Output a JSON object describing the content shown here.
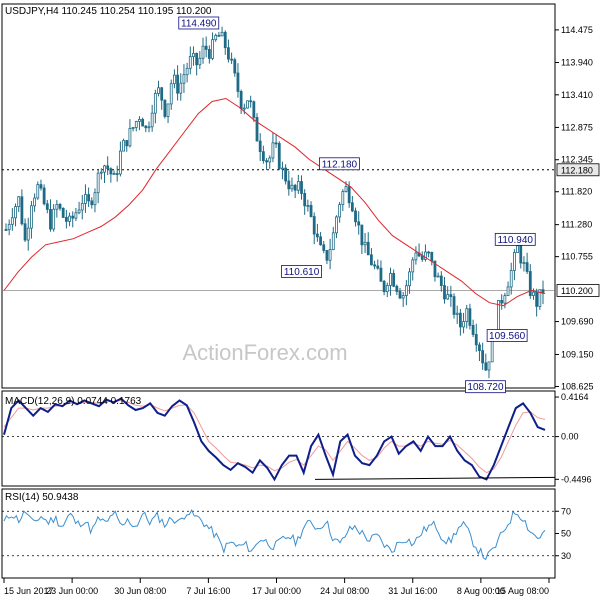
{
  "symbol_header": "USDJPY,H4  110.245 110.254 110.195 110.200",
  "watermark": "ActionForex.com",
  "colors": {
    "candle": "#1f6b86",
    "ma": "#e0262b",
    "macd_line": "#0f1f8a",
    "macd_signal": "#f29a9a",
    "rsi": "#3a8fd0",
    "price_box_fill": "#ffffff",
    "price_box_border": "#000000",
    "annotation_border": "#101080",
    "dotted": "#000000"
  },
  "chart_data": [
    {
      "type": "candlestick",
      "title": "USDJPY,H4",
      "ohlc_readout": {
        "open": 110.245,
        "high": 110.254,
        "low": 110.195,
        "close": 110.2
      },
      "x_tick_labels": [
        "15 Jun 2017",
        "23 Jun 00:00",
        "30 Jun 08:00",
        "7 Jul 16:00",
        "17 Jul 00:00",
        "24 Jul 08:00",
        "31 Jul 16:00",
        "8 Aug 00:00",
        "15 Aug 08:00"
      ],
      "y_tick_labels": [
        "114.475",
        "113.940",
        "113.410",
        "112.875",
        "112.345",
        "111.820",
        "111.280",
        "110.755",
        "109.690",
        "109.150",
        "108.625"
      ],
      "ylim": [
        108.6,
        114.9
      ],
      "price_markers": [
        {
          "label": "112.180",
          "value": 112.18,
          "style": "dotted-line"
        },
        {
          "label": "110.200",
          "value": 110.2,
          "style": "current-price"
        }
      ],
      "annotations": [
        {
          "text": "114.490",
          "value": 114.49,
          "type": "high"
        },
        {
          "text": "112.180",
          "value": 112.18,
          "type": "level"
        },
        {
          "text": "110.610",
          "value": 110.61,
          "type": "low"
        },
        {
          "text": "110.940",
          "value": 110.94,
          "type": "high"
        },
        {
          "text": "109.560",
          "value": 109.56,
          "type": "low"
        },
        {
          "text": "108.720",
          "value": 108.72,
          "type": "low"
        }
      ],
      "close_keypoints": [
        111.2,
        111.5,
        111.7,
        111.0,
        111.7,
        111.9,
        111.6,
        111.3,
        111.6,
        111.4,
        111.3,
        111.5,
        111.7,
        111.6,
        111.9,
        112.3,
        112.2,
        112.0,
        112.5,
        112.7,
        112.9,
        113.1,
        112.8,
        113.3,
        113.5,
        113.1,
        113.7,
        113.5,
        113.8,
        114.0,
        113.9,
        114.2,
        114.1,
        114.4,
        114.3,
        114.0,
        113.6,
        113.2,
        113.4,
        112.8,
        112.5,
        112.3,
        112.6,
        112.2,
        112.0,
        111.8,
        111.9,
        111.6,
        111.3,
        110.9,
        110.7,
        111.0,
        111.6,
        111.9,
        111.7,
        111.3,
        110.9,
        110.7,
        110.5,
        110.2,
        110.5,
        110.3,
        110.1,
        110.4,
        110.9,
        110.7,
        110.8,
        110.5,
        110.3,
        110.1,
        109.9,
        109.6,
        109.9,
        109.6,
        109.3,
        108.9,
        109.3,
        109.9,
        110.2,
        110.5,
        110.9,
        110.6,
        110.2,
        110.0,
        110.2
      ],
      "moving_average_keypoints": [
        110.2,
        110.5,
        110.75,
        110.95,
        111.0,
        111.05,
        111.15,
        111.25,
        111.4,
        111.6,
        111.85,
        112.2,
        112.5,
        112.8,
        113.1,
        113.3,
        113.35,
        113.2,
        113.0,
        112.85,
        112.7,
        112.55,
        112.35,
        112.2,
        112.05,
        111.9,
        111.65,
        111.35,
        111.1,
        110.95,
        110.8,
        110.65,
        110.5,
        110.35,
        110.15,
        110.0,
        109.95,
        110.1,
        110.2,
        110.15
      ]
    },
    {
      "type": "line",
      "title": "MACD(12,26,9) 0.0744 0.1763",
      "y_tick_labels": [
        "0.4164",
        "0.00",
        "-0.4496"
      ],
      "ylim": [
        -0.52,
        0.48
      ],
      "series": [
        {
          "role": "macd",
          "values": [
            0.02,
            0.3,
            0.38,
            0.3,
            0.22,
            0.3,
            0.26,
            0.34,
            0.32,
            0.38,
            0.34,
            0.38,
            0.35,
            0.32,
            0.39,
            0.36,
            0.4,
            0.33,
            0.28,
            0.3,
            0.35,
            0.25,
            0.22,
            0.32,
            0.38,
            0.33,
            0.15,
            -0.05,
            -0.15,
            -0.22,
            -0.3,
            -0.35,
            -0.28,
            -0.32,
            -0.38,
            -0.25,
            -0.33,
            -0.45,
            -0.3,
            -0.2,
            -0.2,
            -0.38,
            -0.1,
            0.02,
            -0.2,
            -0.4,
            -0.05,
            0.02,
            -0.2,
            -0.28,
            -0.3,
            -0.2,
            -0.05,
            0.0,
            -0.18,
            -0.1,
            -0.05,
            -0.15,
            0.0,
            -0.1,
            -0.1,
            0.0,
            -0.15,
            -0.25,
            -0.3,
            -0.42,
            -0.45,
            -0.3,
            -0.1,
            0.1,
            0.3,
            0.35,
            0.25,
            0.1,
            0.07
          ]
        },
        {
          "role": "signal",
          "values": [
            0.1,
            0.2,
            0.3,
            0.3,
            0.28,
            0.3,
            0.3,
            0.32,
            0.33,
            0.35,
            0.35,
            0.36,
            0.36,
            0.35,
            0.37,
            0.37,
            0.38,
            0.36,
            0.33,
            0.32,
            0.34,
            0.3,
            0.27,
            0.3,
            0.33,
            0.33,
            0.25,
            0.1,
            -0.05,
            -0.12,
            -0.2,
            -0.27,
            -0.28,
            -0.3,
            -0.33,
            -0.3,
            -0.31,
            -0.36,
            -0.33,
            -0.27,
            -0.24,
            -0.3,
            -0.2,
            -0.1,
            -0.14,
            -0.25,
            -0.15,
            -0.05,
            -0.12,
            -0.2,
            -0.25,
            -0.22,
            -0.12,
            -0.05,
            -0.1,
            -0.1,
            -0.07,
            -0.1,
            -0.05,
            -0.07,
            -0.08,
            -0.04,
            -0.09,
            -0.16,
            -0.23,
            -0.32,
            -0.38,
            -0.34,
            -0.22,
            -0.05,
            0.12,
            0.25,
            0.26,
            0.2,
            0.18
          ]
        },
        {
          "role": "trendline",
          "values": [
            -0.45,
            -0.43
          ]
        }
      ]
    },
    {
      "type": "line",
      "title": "RSI(14) 50.9438",
      "y_tick_labels": [
        "70",
        "50",
        "30"
      ],
      "ylim": [
        10,
        90
      ],
      "series": [
        {
          "role": "rsi",
          "values": [
            60,
            68,
            62,
            70,
            58,
            66,
            60,
            64,
            56,
            68,
            58,
            62,
            52,
            64,
            58,
            70,
            55,
            62,
            56,
            68,
            60,
            66,
            58,
            64,
            60,
            70,
            66,
            62,
            55,
            48,
            36,
            42,
            38,
            40,
            34,
            46,
            42,
            38,
            44,
            48,
            42,
            56,
            60,
            54,
            62,
            46,
            40,
            52,
            56,
            50,
            44,
            48,
            40,
            34,
            42,
            46,
            40,
            50,
            56,
            58,
            46,
            42,
            54,
            58,
            44,
            34,
            28,
            36,
            48,
            60,
            70,
            64,
            52,
            46,
            51
          ]
        }
      ]
    }
  ]
}
